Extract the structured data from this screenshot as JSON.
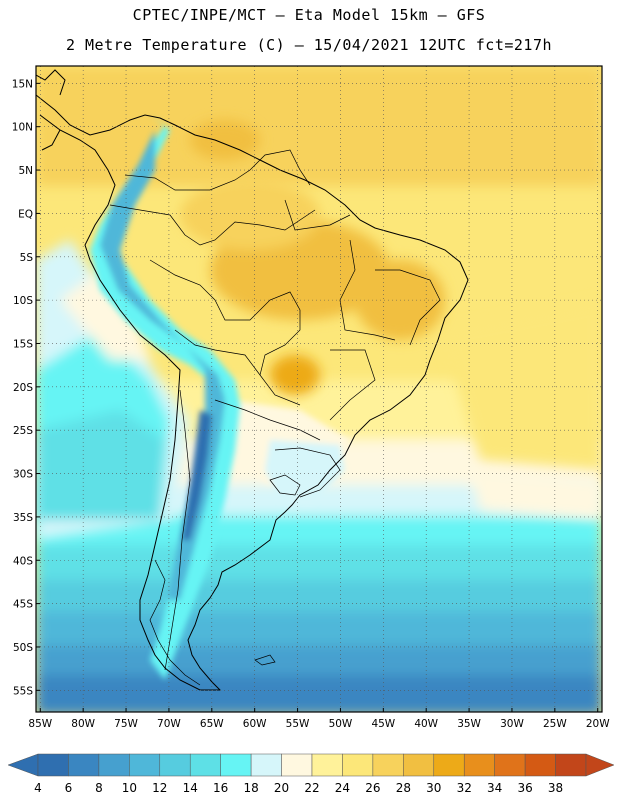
{
  "header": {
    "line1": "CPTEC/INPE/MCT –  Eta Model 15km – GFS",
    "line2": "2 Metre Temperature (C) – 15/04/2021 12UTC fct=217h"
  },
  "map": {
    "lat_labels": [
      "15N",
      "10N",
      "5N",
      "EQ",
      "5S",
      "10S",
      "15S",
      "20S",
      "25S",
      "30S",
      "35S",
      "40S",
      "45S",
      "50S",
      "55S"
    ],
    "lon_labels": [
      "85W",
      "80W",
      "75W",
      "70W",
      "65W",
      "60W",
      "55W",
      "50W",
      "45W",
      "40W",
      "35W",
      "30W",
      "25W",
      "20W"
    ],
    "lat_values": [
      15,
      10,
      5,
      0,
      -5,
      -10,
      -15,
      -20,
      -25,
      -30,
      -35,
      -40,
      -45,
      -50,
      -55
    ],
    "lon_values": [
      -85,
      -80,
      -75,
      -70,
      -65,
      -60,
      -55,
      -50,
      -45,
      -40,
      -35,
      -30,
      -25,
      -20
    ],
    "extent": {
      "lon_min": -85.5,
      "lon_max": -19.5,
      "lat_min": -57.5,
      "lat_max": 17
    }
  },
  "colorbar": {
    "labels": [
      "4",
      "6",
      "8",
      "10",
      "12",
      "14",
      "16",
      "18",
      "20",
      "22",
      "24",
      "26",
      "28",
      "30",
      "32",
      "34",
      "36",
      "38"
    ],
    "colors": [
      "#2f6fb0",
      "#3a86c1",
      "#46a0cf",
      "#4fb7d9",
      "#56ccdf",
      "#5ee0e6",
      "#66f4f4",
      "#d6f6fa",
      "#fff8e0",
      "#fff29a",
      "#fce779",
      "#f7d25c",
      "#f1bf41",
      "#edaa18",
      "#e88f1c",
      "#e0731a",
      "#d45a14",
      "#c2461a"
    ]
  }
}
